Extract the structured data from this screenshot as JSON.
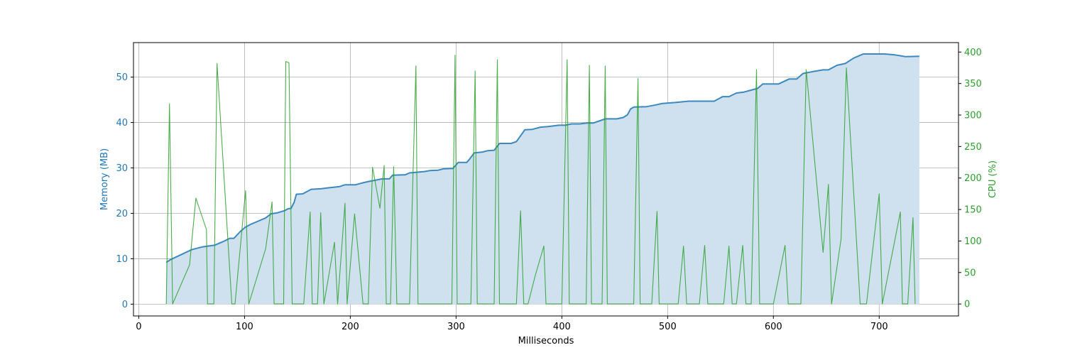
{
  "chart_data": {
    "type": "line",
    "xlabel": "Milliseconds",
    "ylabel_left": "Memory (MB)",
    "ylabel_right": "CPU (%)",
    "xlim": [
      -5,
      775
    ],
    "ylim_left": [
      -2.6,
      57.6
    ],
    "ylim_right": [
      -19,
      415
    ],
    "grid": true,
    "x_ticks": [
      0,
      100,
      200,
      300,
      400,
      500,
      600,
      700
    ],
    "y_ticks_left": [
      0,
      10,
      20,
      30,
      40,
      50
    ],
    "y_ticks_right": [
      0,
      50,
      100,
      150,
      200,
      250,
      300,
      350,
      400
    ],
    "colors": {
      "memory": "#1f77b4",
      "cpu": "#2ca02c",
      "memory_fill": "#cfe1ef",
      "grid": "#b0b0b0"
    },
    "series": [
      {
        "name": "Memory (MB)",
        "axis": "left",
        "style": "line+area",
        "points": [
          [
            26,
            9.2
          ],
          [
            30,
            9.8
          ],
          [
            40,
            10.9
          ],
          [
            50,
            12.0
          ],
          [
            55,
            12.3
          ],
          [
            60,
            12.6
          ],
          [
            66,
            12.8
          ],
          [
            72,
            13.0
          ],
          [
            80,
            13.8
          ],
          [
            86,
            14.5
          ],
          [
            90,
            14.5
          ],
          [
            96,
            16.0
          ],
          [
            101,
            17.0
          ],
          [
            106,
            17.6
          ],
          [
            112,
            18.2
          ],
          [
            120,
            19.0
          ],
          [
            125,
            19.9
          ],
          [
            131,
            20.1
          ],
          [
            138,
            20.6
          ],
          [
            141,
            21.0
          ],
          [
            144,
            21.1
          ],
          [
            147,
            22.5
          ],
          [
            149,
            24.2
          ],
          [
            155,
            24.3
          ],
          [
            163,
            25.3
          ],
          [
            172,
            25.4
          ],
          [
            178,
            25.6
          ],
          [
            190,
            25.9
          ],
          [
            195,
            26.3
          ],
          [
            205,
            26.3
          ],
          [
            213,
            26.8
          ],
          [
            219,
            27.1
          ],
          [
            226,
            27.4
          ],
          [
            230,
            27.6
          ],
          [
            237,
            27.6
          ],
          [
            240,
            28.4
          ],
          [
            252,
            28.5
          ],
          [
            256,
            28.9
          ],
          [
            270,
            29.2
          ],
          [
            275,
            29.4
          ],
          [
            283,
            29.5
          ],
          [
            288,
            29.8
          ],
          [
            297,
            29.9
          ],
          [
            302,
            31.2
          ],
          [
            310,
            31.2
          ],
          [
            313,
            32.0
          ],
          [
            317,
            33.3
          ],
          [
            325,
            33.5
          ],
          [
            330,
            33.8
          ],
          [
            336,
            33.9
          ],
          [
            341,
            35.4
          ],
          [
            352,
            35.4
          ],
          [
            357,
            35.8
          ],
          [
            365,
            38.4
          ],
          [
            372,
            38.5
          ],
          [
            380,
            39.0
          ],
          [
            387,
            39.1
          ],
          [
            397,
            39.4
          ],
          [
            403,
            39.4
          ],
          [
            409,
            39.7
          ],
          [
            417,
            39.7
          ],
          [
            424,
            39.9
          ],
          [
            430,
            39.9
          ],
          [
            436,
            40.4
          ],
          [
            441,
            40.8
          ],
          [
            452,
            40.8
          ],
          [
            458,
            41.1
          ],
          [
            462,
            41.7
          ],
          [
            465,
            43.0
          ],
          [
            468,
            43.4
          ],
          [
            480,
            43.5
          ],
          [
            487,
            43.8
          ],
          [
            495,
            44.2
          ],
          [
            507,
            44.4
          ],
          [
            520,
            44.7
          ],
          [
            532,
            44.7
          ],
          [
            544,
            44.7
          ],
          [
            552,
            45.7
          ],
          [
            558,
            45.7
          ],
          [
            565,
            46.5
          ],
          [
            572,
            46.7
          ],
          [
            580,
            47.2
          ],
          [
            585,
            47.5
          ],
          [
            590,
            48.5
          ],
          [
            605,
            48.5
          ],
          [
            615,
            49.6
          ],
          [
            622,
            49.6
          ],
          [
            628,
            50.8
          ],
          [
            637,
            51.2
          ],
          [
            647,
            51.6
          ],
          [
            652,
            51.6
          ],
          [
            660,
            52.6
          ],
          [
            668,
            53.0
          ],
          [
            676,
            54.2
          ],
          [
            685,
            55.1
          ],
          [
            705,
            55.1
          ],
          [
            715,
            54.9
          ],
          [
            725,
            54.5
          ],
          [
            738,
            54.6
          ]
        ]
      },
      {
        "name": "CPU (%)",
        "axis": "right",
        "style": "line",
        "points": [
          [
            26,
            0
          ],
          [
            29,
            318
          ],
          [
            32,
            0
          ],
          [
            48,
            62
          ],
          [
            54,
            168
          ],
          [
            64,
            118
          ],
          [
            65,
            0
          ],
          [
            71,
            0
          ],
          [
            74,
            382
          ],
          [
            88,
            0
          ],
          [
            91,
            0
          ],
          [
            101,
            180
          ],
          [
            104,
            0
          ],
          [
            120,
            88
          ],
          [
            126,
            162
          ],
          [
            128,
            0
          ],
          [
            137,
            0
          ],
          [
            139,
            385
          ],
          [
            142,
            383
          ],
          [
            145,
            0
          ],
          [
            156,
            0
          ],
          [
            162,
            146
          ],
          [
            164,
            0
          ],
          [
            169,
            0
          ],
          [
            172,
            145
          ],
          [
            175,
            0
          ],
          [
            185,
            98
          ],
          [
            188,
            0
          ],
          [
            195,
            160
          ],
          [
            197,
            0
          ],
          [
            204,
            143
          ],
          [
            212,
            0
          ],
          [
            217,
            0
          ],
          [
            221,
            217
          ],
          [
            228,
            152
          ],
          [
            232,
            220
          ],
          [
            234,
            0
          ],
          [
            238,
            0
          ],
          [
            241,
            218
          ],
          [
            244,
            0
          ],
          [
            256,
            0
          ],
          [
            262,
            378
          ],
          [
            264,
            0
          ],
          [
            296,
            0
          ],
          [
            299,
            395
          ],
          [
            301,
            0
          ],
          [
            314,
            0
          ],
          [
            318,
            370
          ],
          [
            320,
            0
          ],
          [
            336,
            0
          ],
          [
            339,
            388
          ],
          [
            341,
            0
          ],
          [
            357,
            0
          ],
          [
            361,
            148
          ],
          [
            364,
            0
          ],
          [
            368,
            0
          ],
          [
            375,
            46
          ],
          [
            383,
            92
          ],
          [
            385,
            0
          ],
          [
            400,
            0
          ],
          [
            405,
            388
          ],
          [
            407,
            0
          ],
          [
            423,
            0
          ],
          [
            426,
            379
          ],
          [
            428,
            0
          ],
          [
            438,
            0
          ],
          [
            441,
            378
          ],
          [
            443,
            0
          ],
          [
            468,
            0
          ],
          [
            472,
            358
          ],
          [
            474,
            0
          ],
          [
            485,
            0
          ],
          [
            490,
            147
          ],
          [
            492,
            0
          ],
          [
            510,
            0
          ],
          [
            515,
            92
          ],
          [
            518,
            0
          ],
          [
            530,
            0
          ],
          [
            535,
            93
          ],
          [
            538,
            0
          ],
          [
            553,
            0
          ],
          [
            558,
            92
          ],
          [
            561,
            0
          ],
          [
            565,
            0
          ],
          [
            571,
            93
          ],
          [
            574,
            0
          ],
          [
            579,
            0
          ],
          [
            584,
            372
          ],
          [
            587,
            0
          ],
          [
            600,
            0
          ],
          [
            611,
            93
          ],
          [
            614,
            0
          ],
          [
            626,
            0
          ],
          [
            631,
            372
          ],
          [
            647,
            82
          ],
          [
            652,
            190
          ],
          [
            655,
            0
          ],
          [
            664,
            103
          ],
          [
            669,
            375
          ],
          [
            682,
            0
          ],
          [
            688,
            0
          ],
          [
            700,
            175
          ],
          [
            703,
            0
          ],
          [
            720,
            146
          ],
          [
            722,
            0
          ],
          [
            727,
            0
          ],
          [
            732,
            137
          ],
          [
            734,
            0
          ]
        ]
      }
    ]
  }
}
